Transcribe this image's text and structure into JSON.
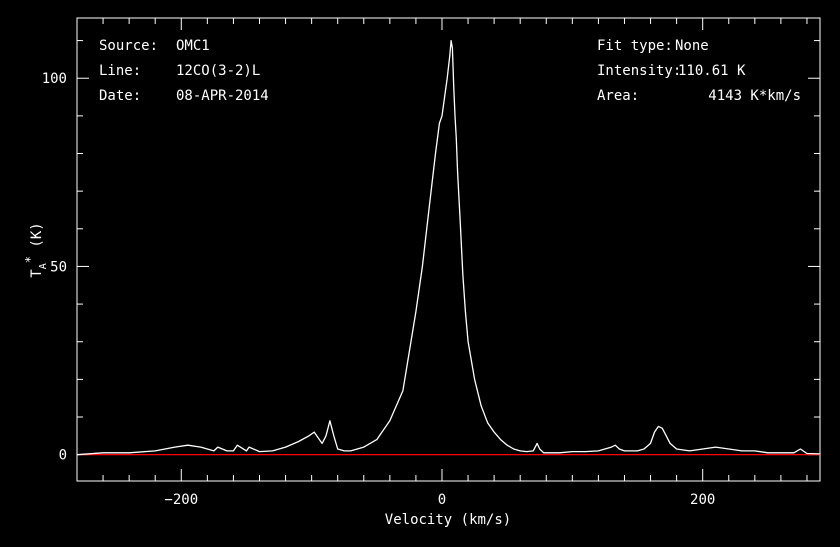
{
  "colors": {
    "background": "#000000",
    "foreground": "#ffffff",
    "baseline": "#ff0000"
  },
  "info_left": [
    {
      "label": "Source:",
      "value": "OMC1"
    },
    {
      "label": "Line:",
      "value": "12CO(3-2)L"
    },
    {
      "label": "Date:",
      "value": "08-APR-2014"
    }
  ],
  "info_right": [
    {
      "label": "Fit type:",
      "value": "None"
    },
    {
      "label": "Intensity:",
      "value": "110.61 K"
    },
    {
      "label": "Area:",
      "value": "4143 K*km/s"
    }
  ],
  "chart_data": {
    "type": "line",
    "title": "",
    "xlabel": "Velocity (km/s)",
    "ylabel": "T*A (K)",
    "xlim": [
      -280,
      290
    ],
    "ylim": [
      -7,
      116
    ],
    "xticks": [
      -200,
      0,
      200
    ],
    "yticks": [
      0,
      50,
      100
    ],
    "grid": false,
    "baseline_y": 0,
    "series": [
      {
        "x": [
          -280,
          -260,
          -240,
          -220,
          -205,
          -195,
          -185,
          -175,
          -172,
          -165,
          -160,
          -157,
          -150,
          -148,
          -140,
          -130,
          -120,
          -110,
          -102,
          -98,
          -95,
          -92,
          -89,
          -86,
          -83,
          -80,
          -75,
          -70,
          -60,
          -50,
          -40,
          -30,
          -20,
          -15,
          -10,
          -5,
          -2,
          0,
          2,
          4,
          6,
          7,
          8,
          9,
          10,
          11,
          12,
          14,
          16,
          18,
          20,
          25,
          30,
          35,
          40,
          45,
          50,
          55,
          60,
          65,
          70,
          73,
          75,
          78,
          80,
          90,
          100,
          110,
          120,
          130,
          133,
          136,
          140,
          150,
          155,
          160,
          163,
          166,
          169,
          172,
          175,
          180,
          190,
          200,
          210,
          220,
          230,
          240,
          250,
          260,
          270,
          275,
          280,
          290
        ],
        "y": [
          0,
          0.5,
          0.5,
          1,
          2,
          2.5,
          2,
          1,
          2,
          1,
          1,
          2.5,
          1,
          2,
          0.8,
          1,
          2,
          3.5,
          5,
          6,
          4.5,
          3,
          5,
          9,
          5,
          1.5,
          1,
          1,
          2,
          4,
          9,
          17,
          38,
          50,
          65,
          80,
          88,
          90,
          95,
          100,
          106,
          110,
          108,
          98,
          90,
          84,
          75,
          62,
          48,
          38,
          30,
          20,
          13,
          8.5,
          6,
          4,
          2.5,
          1.5,
          1,
          0.8,
          1,
          3,
          1.5,
          0.5,
          0.5,
          0.5,
          0.8,
          0.8,
          1,
          2,
          2.5,
          1.5,
          1,
          1,
          1.5,
          3,
          6,
          7.5,
          7,
          5,
          3,
          1.5,
          1,
          1.5,
          2,
          1.5,
          1,
          1,
          0.5,
          0.5,
          0.5,
          1.5,
          0.3,
          0.2
        ]
      }
    ]
  }
}
